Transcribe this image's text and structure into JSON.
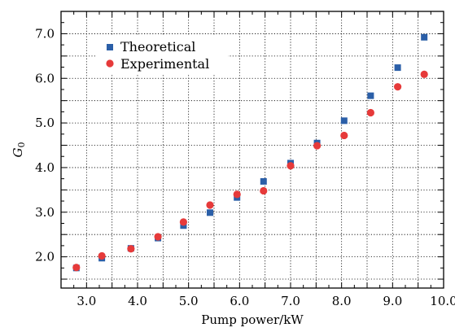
{
  "chart_data": {
    "type": "scatter",
    "xlabel": "Pump power/kW",
    "ylabel_main": "G",
    "ylabel_sub": "0",
    "xlim": [
      2.5,
      10.0
    ],
    "ylim": [
      1.3,
      7.5
    ],
    "xticks": [
      3.0,
      4.0,
      5.0,
      6.0,
      7.0,
      8.0,
      9.0,
      10.0
    ],
    "xtick_labels": [
      "3.0",
      "4.0",
      "5.0",
      "6.0",
      "7.0",
      "8.0",
      "9.0",
      "10.0"
    ],
    "yticks": [
      2.0,
      3.0,
      4.0,
      5.0,
      6.0,
      7.0
    ],
    "ytick_labels": [
      "2.0",
      "3.0",
      "4.0",
      "5.0",
      "6.0",
      "7.0"
    ],
    "grid": true,
    "grid_style": "dotted",
    "legend_position": "top-left",
    "series": [
      {
        "name": "Theoretical",
        "marker": "square",
        "color": "#2b5fa8",
        "x": [
          2.8,
          3.3,
          3.87,
          4.4,
          4.9,
          5.42,
          5.95,
          6.47,
          7.0,
          7.52,
          8.05,
          8.57,
          9.1,
          9.62
        ],
        "y": [
          1.75,
          1.97,
          2.19,
          2.42,
          2.7,
          2.99,
          3.33,
          3.69,
          4.1,
          4.55,
          5.05,
          5.61,
          6.24,
          6.92
        ]
      },
      {
        "name": "Experimental",
        "marker": "circle",
        "color": "#e63a3a",
        "x": [
          2.8,
          3.3,
          3.87,
          4.4,
          4.9,
          5.42,
          5.95,
          6.47,
          7.0,
          7.52,
          8.05,
          8.57,
          9.1,
          9.62
        ],
        "y": [
          1.76,
          2.02,
          2.18,
          2.45,
          2.78,
          3.16,
          3.4,
          3.48,
          4.04,
          4.49,
          4.72,
          5.23,
          5.81,
          6.09
        ]
      }
    ]
  }
}
